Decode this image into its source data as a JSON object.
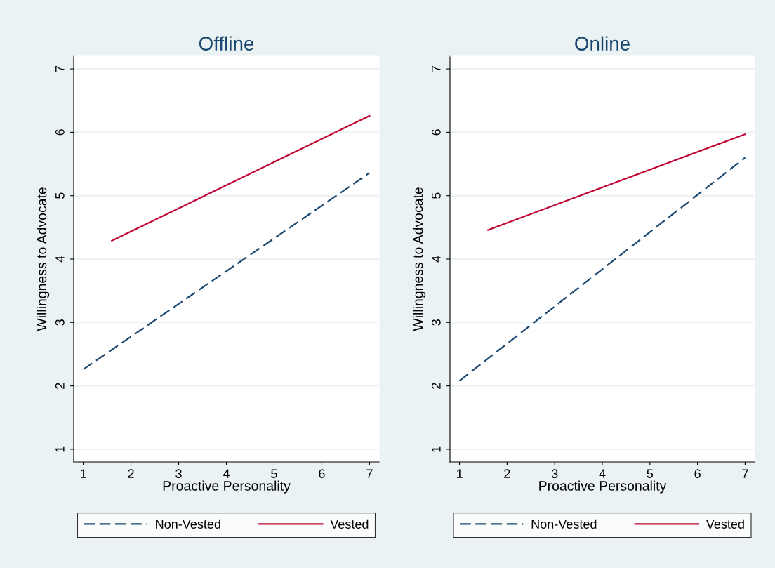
{
  "chart_data": [
    {
      "type": "line",
      "title": "Offline",
      "xlabel": "Proactive Personality",
      "ylabel": "Willingness to Advocate",
      "xlim": [
        0.8,
        7.2
      ],
      "ylim": [
        0.8,
        7.2
      ],
      "xticks": [
        1,
        2,
        3,
        4,
        5,
        6,
        7
      ],
      "yticks": [
        1,
        2,
        3,
        4,
        5,
        6,
        7
      ],
      "grid": "y",
      "legend": "bottom",
      "series": [
        {
          "name": "Non-Vested",
          "color": "#1a476f",
          "line_style": "dashed",
          "x": [
            1,
            7
          ],
          "values": [
            2.26,
            5.36
          ]
        },
        {
          "name": "Vested",
          "color": "#c10534",
          "line_style": "solid",
          "x": [
            1.6,
            7
          ],
          "values": [
            4.29,
            6.26
          ]
        }
      ]
    },
    {
      "type": "line",
      "title": "Online",
      "xlabel": "Proactive Personality",
      "ylabel": "Willingness to Advocate",
      "xlim": [
        0.8,
        7.2
      ],
      "ylim": [
        0.8,
        7.2
      ],
      "xticks": [
        1,
        2,
        3,
        4,
        5,
        6,
        7
      ],
      "yticks": [
        1,
        2,
        3,
        4,
        5,
        6,
        7
      ],
      "grid": "y",
      "legend": "bottom",
      "series": [
        {
          "name": "Non-Vested",
          "color": "#1a476f",
          "line_style": "dashed",
          "x": [
            1,
            7
          ],
          "values": [
            2.08,
            5.6
          ]
        },
        {
          "name": "Vested",
          "color": "#c10534",
          "line_style": "solid",
          "x": [
            1.6,
            7
          ],
          "values": [
            4.46,
            5.97
          ]
        }
      ]
    }
  ]
}
